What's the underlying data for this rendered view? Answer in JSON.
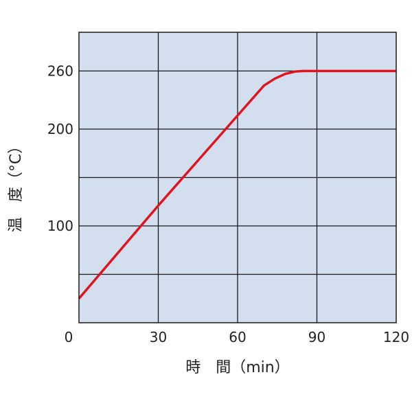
{
  "chart_data": {
    "type": "line",
    "title": "",
    "xlabel": "時　間（min）",
    "ylabel": "温　度（°C）",
    "xlim": [
      0,
      120
    ],
    "ylim": [
      0,
      300
    ],
    "x_ticks": [
      0,
      30,
      60,
      90,
      120
    ],
    "x_tick_labels": [
      "0",
      "30",
      "60",
      "90",
      "120"
    ],
    "y_ticks": [
      100,
      200,
      260
    ],
    "y_tick_labels": [
      "100",
      "200",
      "260"
    ],
    "y_gridlines": [
      50,
      100,
      150,
      200,
      260
    ],
    "grid": true,
    "series": [
      {
        "x": [
          0,
          30,
          60,
          70,
          74,
          78,
          82,
          85,
          120
        ],
        "y": [
          25,
          121,
          214,
          245,
          252,
          257,
          259.5,
          260,
          260
        ],
        "color": "#e0141e"
      }
    ],
    "colors": {
      "plot_background": "#d3deee",
      "grid": "#1a1a1a",
      "line": "#e0141e"
    }
  }
}
